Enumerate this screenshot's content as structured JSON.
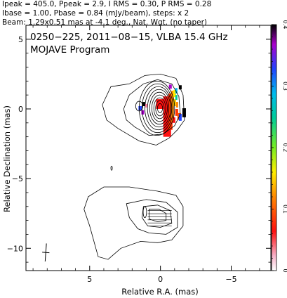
{
  "header": {
    "lines": [
      "Ipeak = 405.0, Ppeak = 2.9, I RMS = 0.30, P RMS = 0.28",
      "Ibase = 1.00, Pbase = 0.84 (mJy/beam), steps: x 2",
      "Beam: 1.29x0.51 mas at -4.1 deg., Nat. Wgt. (no taper)"
    ]
  },
  "chart_data": {
    "type": "contour",
    "title": "0250−225, 2011−08−15, VLBA 15.4 GHz",
    "subtitle": "MOJAVE Program",
    "xlabel": "Relative R.A. (mas)",
    "ylabel": "Relative Declination (mas)",
    "xlim": [
      9.5,
      -7.8
    ],
    "ylim": [
      -11.6,
      6.0
    ],
    "x_ticks": [
      {
        "value": 5,
        "label": "5"
      },
      {
        "value": 0,
        "label": "0"
      },
      {
        "value": -5,
        "label": "−5"
      }
    ],
    "y_ticks": [
      {
        "value": 5,
        "label": "5"
      },
      {
        "value": 0,
        "label": "0"
      },
      {
        "value": -5,
        "label": "−5"
      },
      {
        "value": -10,
        "label": "−10"
      }
    ],
    "colorbar": {
      "range": [
        0,
        0.4
      ],
      "ticks": [
        {
          "value": 0,
          "label": "0"
        },
        {
          "value": 0.1,
          "label": "0.1"
        },
        {
          "value": 0.2,
          "label": "0.2"
        },
        {
          "value": 0.3,
          "label": "0.3"
        },
        {
          "value": 0.4,
          "label": "0.4"
        }
      ]
    },
    "core": {
      "x": 0.0,
      "y": 0.0
    },
    "contour_levels_mjy": [
      1,
      2,
      4,
      8,
      16,
      32,
      64,
      128,
      256
    ],
    "beam": {
      "major_mas": 1.29,
      "minor_mas": 0.51,
      "pa_deg": -4.1,
      "x": 8.1,
      "y": -10.3
    }
  }
}
